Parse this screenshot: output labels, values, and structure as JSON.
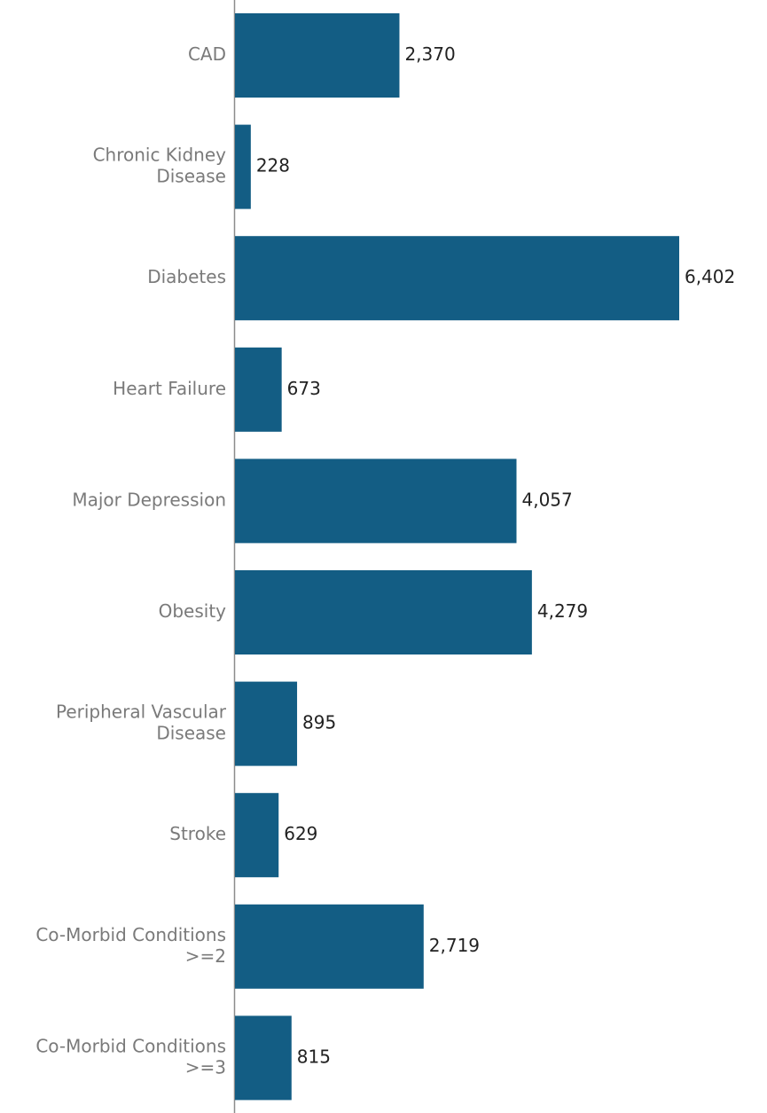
{
  "chart_data": {
    "type": "bar",
    "orientation": "horizontal",
    "categories": [
      [
        "CAD"
      ],
      [
        "Chronic Kidney",
        "Disease"
      ],
      [
        "Diabetes"
      ],
      [
        "Heart Failure"
      ],
      [
        "Major Depression"
      ],
      [
        "Obesity"
      ],
      [
        "Peripheral Vascular",
        "Disease"
      ],
      [
        "Stroke"
      ],
      [
        "Co-Morbid Conditions",
        ">=2"
      ],
      [
        "Co-Morbid Conditions",
        ">=3"
      ]
    ],
    "values": [
      2370,
      228,
      6402,
      673,
      4057,
      4279,
      895,
      629,
      2719,
      815
    ],
    "value_labels": [
      "2,370",
      "228",
      "6,402",
      "673",
      "4,057",
      "4,279",
      "895",
      "629",
      "2,719",
      "815"
    ],
    "xlim": [
      0,
      6402
    ],
    "grid": false,
    "legend": "none",
    "bar_color": "#135d84",
    "axis_color": "#8c8c8c"
  }
}
